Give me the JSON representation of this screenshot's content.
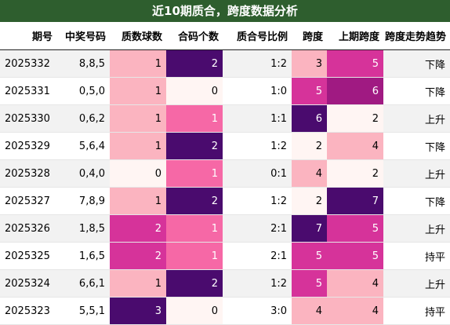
{
  "title": "近10期质合，跨度数据分析",
  "columns": [
    "期号",
    "中奖号码",
    "质数球数",
    "合码个数",
    "质合号比例",
    "跨度",
    "上期跨度",
    "跨度走势趋势"
  ],
  "rows": [
    {
      "cells": [
        "2025332",
        "8,8,5",
        "1",
        "2",
        "1:2",
        "3",
        "5",
        "下降"
      ],
      "levels": [
        null,
        null,
        1,
        5,
        null,
        1,
        3,
        null
      ]
    },
    {
      "cells": [
        "2025331",
        "0,5,0",
        "1",
        "0",
        "1:0",
        "5",
        "6",
        "下降"
      ],
      "levels": [
        null,
        null,
        1,
        0,
        null,
        3,
        4,
        null
      ]
    },
    {
      "cells": [
        "2025330",
        "0,6,2",
        "1",
        "1",
        "1:1",
        "6",
        "2",
        "上升"
      ],
      "levels": [
        null,
        null,
        1,
        2,
        null,
        5,
        0,
        null
      ]
    },
    {
      "cells": [
        "2025329",
        "5,6,4",
        "1",
        "2",
        "1:2",
        "2",
        "4",
        "下降"
      ],
      "levels": [
        null,
        null,
        1,
        5,
        null,
        0,
        1,
        null
      ]
    },
    {
      "cells": [
        "2025328",
        "0,4,0",
        "0",
        "1",
        "0:1",
        "4",
        "2",
        "上升"
      ],
      "levels": [
        null,
        null,
        0,
        2,
        null,
        1,
        0,
        null
      ]
    },
    {
      "cells": [
        "2025327",
        "7,8,9",
        "1",
        "2",
        "1:2",
        "2",
        "7",
        "下降"
      ],
      "levels": [
        null,
        null,
        1,
        5,
        null,
        0,
        5,
        null
      ]
    },
    {
      "cells": [
        "2025326",
        "1,8,5",
        "2",
        "1",
        "2:1",
        "7",
        "5",
        "上升"
      ],
      "levels": [
        null,
        null,
        3,
        2,
        null,
        5,
        3,
        null
      ]
    },
    {
      "cells": [
        "2025325",
        "1,6,5",
        "2",
        "1",
        "2:1",
        "5",
        "5",
        "持平"
      ],
      "levels": [
        null,
        null,
        3,
        2,
        null,
        3,
        3,
        null
      ]
    },
    {
      "cells": [
        "2025324",
        "6,6,1",
        "1",
        "2",
        "1:2",
        "5",
        "4",
        "上升"
      ],
      "levels": [
        null,
        null,
        1,
        5,
        null,
        3,
        1,
        null
      ]
    },
    {
      "cells": [
        "2025323",
        "5,5,1",
        "3",
        "0",
        "3:0",
        "4",
        "4",
        "持平"
      ],
      "levels": [
        null,
        null,
        5,
        0,
        null,
        1,
        1,
        null
      ]
    }
  ],
  "colors": {
    "title_bg": "#2e5e2e",
    "heat": [
      "#fff5f3",
      "#fbb4c0",
      "#f668a6",
      "#d6339a",
      "#a01a82",
      "#4a0b6e"
    ]
  }
}
